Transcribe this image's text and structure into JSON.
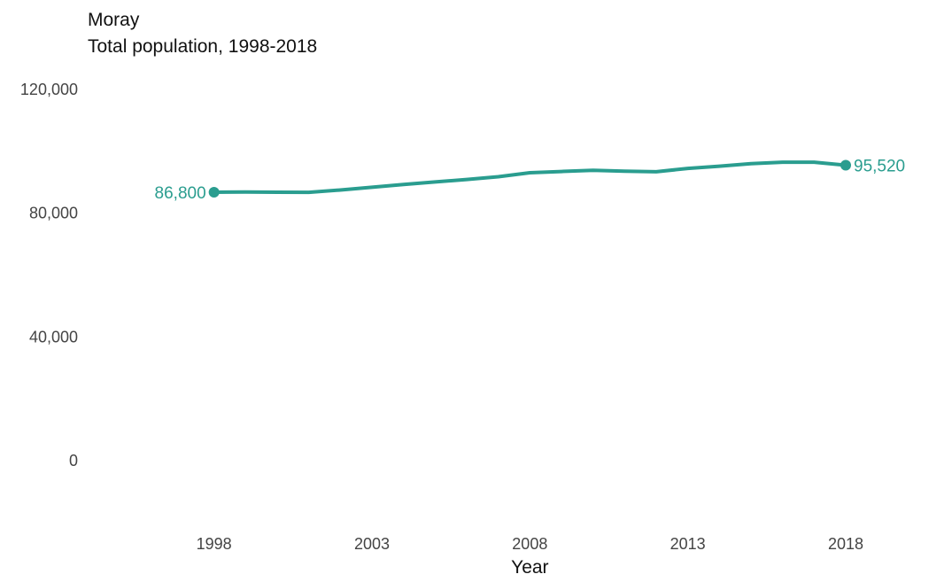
{
  "title": "Moray",
  "subtitle": "Total population, 1998-2018",
  "chart_data": {
    "type": "line",
    "title": "Moray",
    "subtitle": "Total population, 1998-2018",
    "xlabel": "Year",
    "ylabel": "",
    "xlim": [
      1994,
      2021
    ],
    "ylim": [
      -20000,
      120000
    ],
    "x_ticks": [
      1998,
      2003,
      2008,
      2013,
      2018
    ],
    "x_tick_labels": [
      "1998",
      "2003",
      "2008",
      "2013",
      "2018"
    ],
    "y_ticks": [
      0,
      40000,
      80000,
      120000
    ],
    "y_tick_labels": [
      "0",
      "40,000",
      "80,000",
      "120,000"
    ],
    "grid": false,
    "legend": "none",
    "color": "#2a9d8f",
    "series": [
      {
        "x": [
          1998,
          1999,
          2000,
          2001,
          2002,
          2003,
          2004,
          2005,
          2006,
          2007,
          2008,
          2009,
          2010,
          2011,
          2012,
          2013,
          2014,
          2015,
          2016,
          2017,
          2018
        ],
        "values": [
          86800,
          86850,
          86800,
          86750,
          87500,
          88400,
          89300,
          90100,
          90900,
          91800,
          93100,
          93500,
          93900,
          93600,
          93400,
          94500,
          95200,
          96000,
          96500,
          96500,
          95520
        ]
      }
    ],
    "annotations": [
      {
        "x": 1998,
        "y": 86800,
        "text": "86,800",
        "side": "left"
      },
      {
        "x": 2018,
        "y": 95520,
        "text": "95,520",
        "side": "right"
      }
    ]
  }
}
